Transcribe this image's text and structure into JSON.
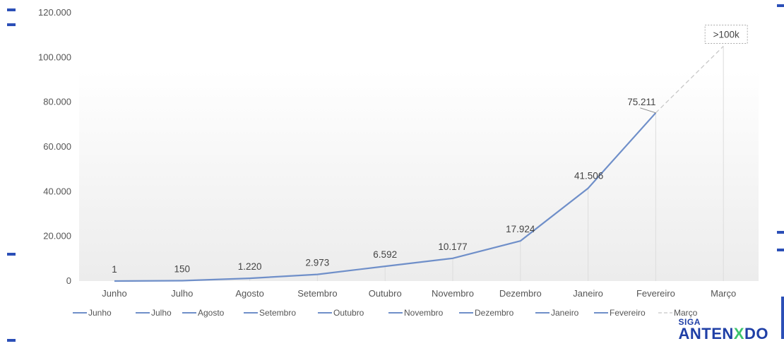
{
  "chart_data": {
    "type": "line",
    "categories": [
      "Junho",
      "Julho",
      "Agosto",
      "Setembro",
      "Outubro",
      "Novembro",
      "Dezembro",
      "Janeiro",
      "Fevereiro",
      "Março"
    ],
    "series": [
      {
        "values": [
          1,
          150,
          1220,
          2973,
          6592,
          10177,
          17924,
          41506,
          75211,
          null
        ],
        "labels": [
          "1",
          "150",
          "1.220",
          "2.973",
          "6.592",
          "10.177",
          "17.924",
          "41.506",
          "75.211",
          null
        ],
        "color": "#6f8fc9"
      },
      {
        "style": "dashed",
        "values": [
          null,
          null,
          null,
          null,
          null,
          null,
          null,
          null,
          75211,
          105000
        ],
        "labels": [
          null,
          null,
          null,
          null,
          null,
          null,
          null,
          null,
          null,
          ">100k"
        ],
        "color": "#c8c8c8"
      }
    ],
    "yticks": [
      "0",
      "20.000",
      "40.000",
      "60.000",
      "80.000",
      "100.000",
      "120.000"
    ],
    "ylim": [
      0,
      120000
    ],
    "legend_position": "bottom",
    "legend": [
      {
        "label": "Junho",
        "style": "solid"
      },
      {
        "label": "Julho",
        "style": "solid"
      },
      {
        "label": "Agosto",
        "style": "solid"
      },
      {
        "label": "Setembro",
        "style": "solid"
      },
      {
        "label": "Outubro",
        "style": "solid"
      },
      {
        "label": "Novembro",
        "style": "solid"
      },
      {
        "label": "Dezembro",
        "style": "solid"
      },
      {
        "label": "Janeiro",
        "style": "solid"
      },
      {
        "label": "Fevereiro",
        "style": "solid"
      },
      {
        "label": "Março",
        "style": "dashed"
      }
    ],
    "grid": false
  },
  "logo": {
    "top": "SIGA",
    "bottom_a": "ANTEN",
    "bottom_b": "X",
    "bottom_c": "DO"
  }
}
